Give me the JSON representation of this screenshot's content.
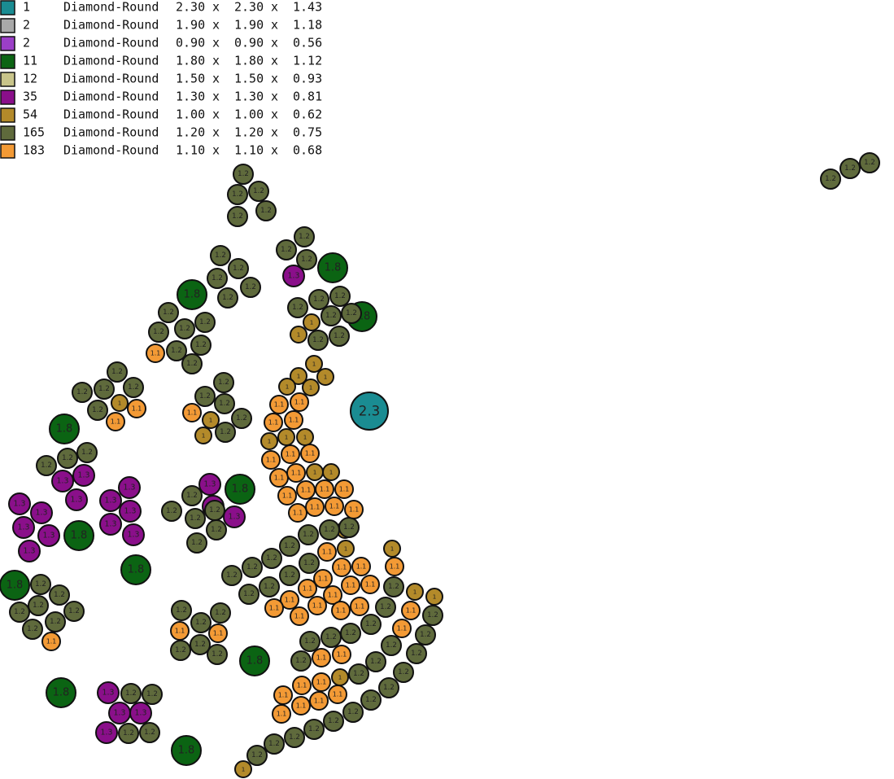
{
  "legend": {
    "separator": "x",
    "rows": [
      {
        "count": 1,
        "shape": "Diamond-Round",
        "dims": [
          {
            "value": 2.3,
            "label": "2.30"
          },
          {
            "value": 2.3,
            "label": "2.30"
          },
          1.43
        ],
        "color": "#1a8c92",
        "stone_label": "2.3"
      },
      {
        "count": 2,
        "shape": "Diamond-Round",
        "dims": [
          {
            "value": 1.9,
            "label": "1.90"
          },
          {
            "value": 1.9,
            "label": "1.90"
          },
          1.18
        ],
        "color": "#a9a9a9"
      },
      {
        "count": 2,
        "shape": "Diamond-Round",
        "dims": [
          {
            "value": 0.9,
            "label": "0.90"
          },
          {
            "value": 0.9,
            "label": "0.90"
          },
          0.56
        ],
        "color": "#9b3fc7"
      },
      {
        "count": 11,
        "shape": "Diamond-Round",
        "dims": [
          {
            "value": 1.8,
            "label": "1.80"
          },
          {
            "value": 1.8,
            "label": "1.80"
          },
          1.12
        ],
        "color": "#0b6413",
        "stone_label": "1.8"
      },
      {
        "count": 12,
        "shape": "Diamond-Round",
        "dims": [
          {
            "value": 1.5,
            "label": "1.50"
          },
          {
            "value": 1.5,
            "label": "1.50"
          },
          0.93
        ],
        "color": "#c8c48a"
      },
      {
        "count": 35,
        "shape": "Diamond-Round",
        "dims": [
          {
            "value": 1.3,
            "label": "1.30"
          },
          {
            "value": 1.3,
            "label": "1.30"
          },
          0.81
        ],
        "color": "#8a0f8a",
        "stone_label": "1.3"
      },
      {
        "count": 54,
        "shape": "Diamond-Round",
        "dims": [
          {
            "value": 1,
            "label": "1.00"
          },
          {
            "value": 1,
            "label": "1.00"
          },
          0.62
        ],
        "color": "#b38a2a",
        "stone_label": "1"
      },
      {
        "count": 165,
        "shape": "Diamond-Round",
        "dims": [
          {
            "value": 1.2,
            "label": "1.20"
          },
          {
            "value": 1.2,
            "label": "1.20"
          },
          0.75
        ],
        "color": "#5f6a3c",
        "stone_label": "1.2"
      },
      {
        "count": 183,
        "shape": "Diamond-Round",
        "dims": [
          {
            "value": 1.1,
            "label": "1.10"
          },
          {
            "value": 1.1,
            "label": "1.10"
          },
          0.68
        ],
        "color": "#f39a35",
        "stone_label": "1.1"
      }
    ]
  }
}
